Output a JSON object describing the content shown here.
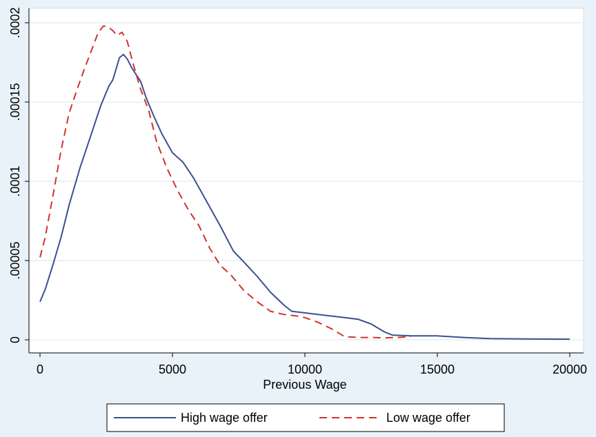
{
  "chart_data": {
    "type": "line",
    "title": "",
    "xlabel": "Previous Wage",
    "ylabel": "",
    "xlim": [
      0,
      20000
    ],
    "ylim": [
      0,
      0.0002
    ],
    "x_ticks": [
      0,
      5000,
      10000,
      15000,
      20000
    ],
    "x_tick_labels": [
      "0",
      "5000",
      "10000",
      "15000",
      "20000"
    ],
    "y_ticks": [
      0,
      5e-05,
      0.0001,
      0.00015,
      0.0002
    ],
    "y_tick_labels": [
      "0",
      ".00005",
      ".0001",
      ".00015",
      ".0002"
    ],
    "grid": true,
    "legend_position": "bottom",
    "colors": {
      "background": "#e8f2f8",
      "plot_area": "#ffffff",
      "grid": "#e4eef5",
      "high_wage": "#3a4f8f",
      "low_wage": "#d0312d"
    },
    "series": [
      {
        "name": "High wage offer",
        "style": "solid",
        "x": [
          0,
          200,
          500,
          800,
          1100,
          1500,
          1900,
          2300,
          2600,
          2750,
          3000,
          3150,
          3300,
          3450,
          3600,
          3800,
          4000,
          4300,
          4600,
          5000,
          5400,
          5800,
          6300,
          6800,
          7300,
          7700,
          8200,
          8700,
          9200,
          9500,
          10000,
          10500,
          11000,
          11500,
          12000,
          12500,
          13000,
          13300,
          14000,
          15000,
          16000,
          17000,
          18000,
          19000,
          20000
        ],
        "values": [
          2.4e-05,
          3.2e-05,
          4.8e-05,
          6.5e-05,
          8.5e-05,
          0.000108,
          0.000128,
          0.000148,
          0.00016,
          0.000164,
          0.000178,
          0.00018,
          0.000177,
          0.000172,
          0.000168,
          0.000163,
          0.000153,
          0.000141,
          0.00013,
          0.000118,
          0.000112,
          0.000102,
          8.7e-05,
          7.2e-05,
          5.6e-05,
          4.9e-05,
          4e-05,
          3e-05,
          2.2e-05,
          1.8e-05,
          1.7e-05,
          1.6e-05,
          1.5e-05,
          1.4e-05,
          1.3e-05,
          1e-05,
          5e-06,
          3e-06,
          2.5e-06,
          2.5e-06,
          1.5e-06,
          8e-07,
          6e-07,
          5e-07,
          4e-07
        ]
      },
      {
        "name": "Low wage offer",
        "style": "dashed",
        "x": [
          0,
          200,
          500,
          800,
          1100,
          1400,
          1700,
          2000,
          2200,
          2400,
          2600,
          2750,
          2900,
          3100,
          3300,
          3500,
          3800,
          4100,
          4400,
          4800,
          5200,
          5600,
          6000,
          6400,
          6800,
          7200,
          7700,
          8200,
          8700,
          9200,
          9700,
          10000,
          10500,
          11000,
          11500,
          12000,
          12500,
          13000,
          13500,
          14000
        ],
        "values": [
          5.2e-05,
          6.5e-05,
          9.2e-05,
          0.00012,
          0.000143,
          0.000158,
          0.000172,
          0.000185,
          0.000194,
          0.000198,
          0.000197,
          0.000195,
          0.000192,
          0.000194,
          0.000188,
          0.000175,
          0.000158,
          0.000145,
          0.000125,
          0.000108,
          9.4e-05,
          8.2e-05,
          7.2e-05,
          5.8e-05,
          4.7e-05,
          4.1e-05,
          3.1e-05,
          2.4e-05,
          1.8e-05,
          1.6e-05,
          1.5e-05,
          1.4e-05,
          1.1e-05,
          7e-06,
          2e-06,
          1.5e-06,
          1.5e-06,
          1.2e-06,
          1.5e-06,
          2e-06
        ]
      }
    ]
  }
}
